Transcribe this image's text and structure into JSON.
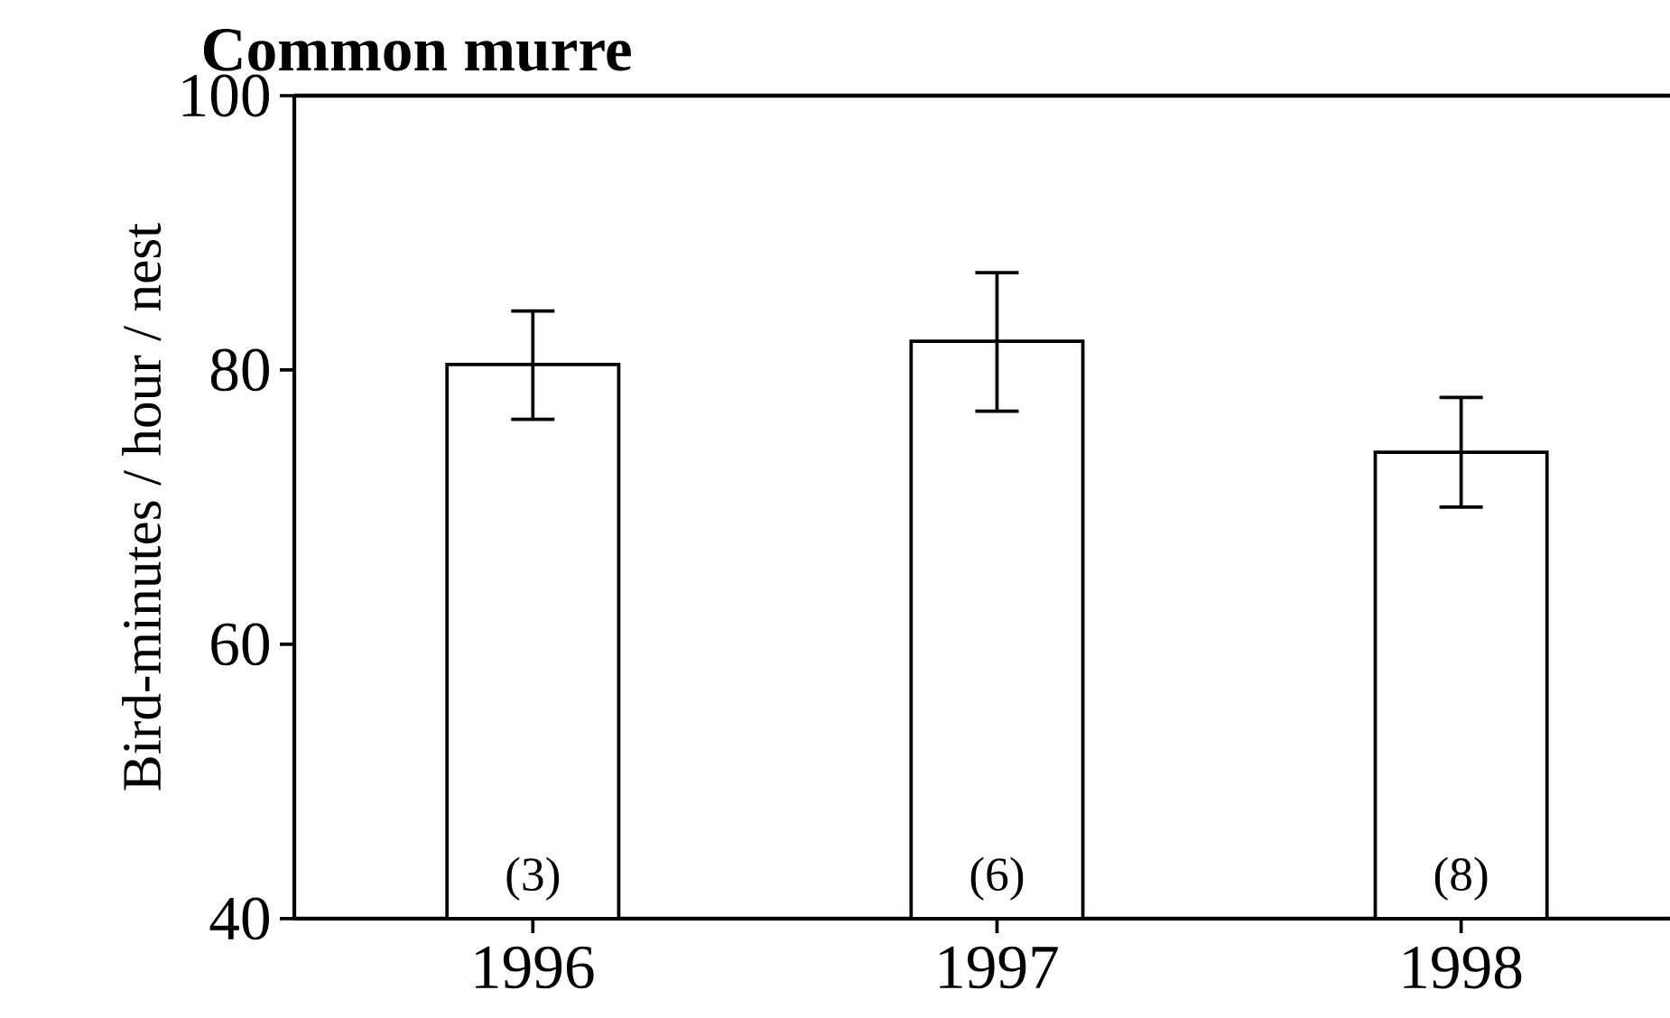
{
  "chart_data": {
    "type": "bar",
    "title": "Common murre",
    "ylabel": "Bird-minutes / hour / nest",
    "categories": [
      "1996",
      "1997",
      "1998"
    ],
    "values": [
      80.4,
      82.1,
      74.0
    ],
    "errors": [
      [
        76.4,
        84.3
      ],
      [
        77.0,
        87.1
      ],
      [
        70.0,
        78.0
      ]
    ],
    "color": "#ffffff",
    "ylim": [
      40,
      100
    ],
    "yticks": [
      40,
      60,
      80,
      100
    ],
    "annotations": [
      "(3)",
      "(6)",
      "(8)"
    ]
  }
}
